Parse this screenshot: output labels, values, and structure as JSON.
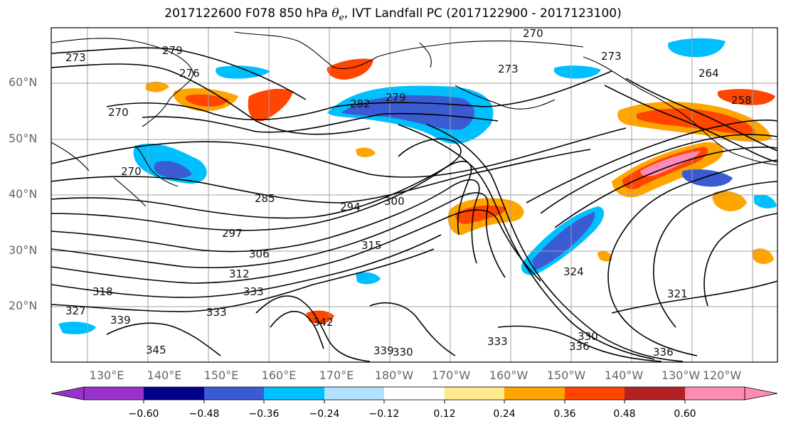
{
  "title": {
    "prefix": "2017122600 F078 850 hPa ",
    "symbol": "θ",
    "subscript": "e",
    "suffix": ", IVT Landfall PC (2017122900 - 2017123100)"
  },
  "map": {
    "latitude_labels": [
      "60°N",
      "50°N",
      "40°N",
      "30°N",
      "20°N"
    ],
    "longitude_labels": [
      "130°E",
      "140°E",
      "150°E",
      "160°E",
      "170°E",
      "180°W",
      "170°W",
      "160°W",
      "150°W",
      "140°W",
      "130°W",
      "120°W"
    ],
    "gridlines": true,
    "projection": "PlateCarree",
    "contour_color": "#000000",
    "contour_labels": [
      "273",
      "279",
      "276",
      "270",
      "282",
      "279",
      "273",
      "270",
      "273",
      "264",
      "258",
      "270",
      "285",
      "294",
      "300",
      "297",
      "306",
      "312",
      "315",
      "318",
      "324",
      "321",
      "327",
      "333",
      "333",
      "336",
      "339",
      "342",
      "345",
      "330",
      "336",
      "339",
      "333",
      "330"
    ]
  },
  "colorbar": {
    "tick_labels": [
      "−0.60",
      "−0.48",
      "−0.36",
      "−0.24",
      "−0.12",
      "0.12",
      "0.24",
      "0.36",
      "0.48",
      "0.60"
    ],
    "colors": [
      "#9932cc",
      "#00008b",
      "#3a5bd1",
      "#00bfff",
      "#b0e2ff",
      "#ffffff",
      "#ffe98a",
      "#ffa500",
      "#ff4500",
      "#b22222",
      "#ff8cb4"
    ],
    "extend": "both"
  }
}
